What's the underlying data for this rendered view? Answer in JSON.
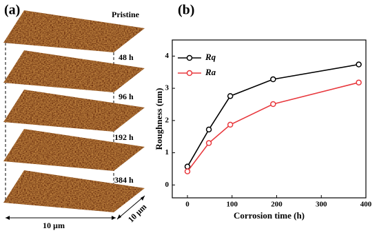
{
  "panel_a": {
    "label": "(a)",
    "layers": [
      "Pristine",
      "48 h",
      "96 h",
      "192 h",
      "384 h"
    ],
    "x_size": "10 µm",
    "y_size": "10 µm"
  },
  "chart_data": {
    "type": "line",
    "panel_label": "(b)",
    "x_label": "Corrosion time (h)",
    "y_label": "Roughness (nm)",
    "x": [
      0,
      48,
      96,
      192,
      384
    ],
    "series": [
      {
        "name": "Rq",
        "color": "#000000",
        "values": [
          0.57,
          1.72,
          2.76,
          3.28,
          3.74
        ]
      },
      {
        "name": "Ra",
        "color": "#e8383d",
        "values": [
          0.42,
          1.3,
          1.87,
          2.51,
          3.18
        ]
      }
    ],
    "xlim": [
      -34,
      400
    ],
    "ylim": [
      -0.4,
      4.5
    ],
    "xticks": [
      0,
      100,
      200,
      300,
      400
    ],
    "yticks": [
      0,
      1,
      2,
      3,
      4
    ]
  }
}
